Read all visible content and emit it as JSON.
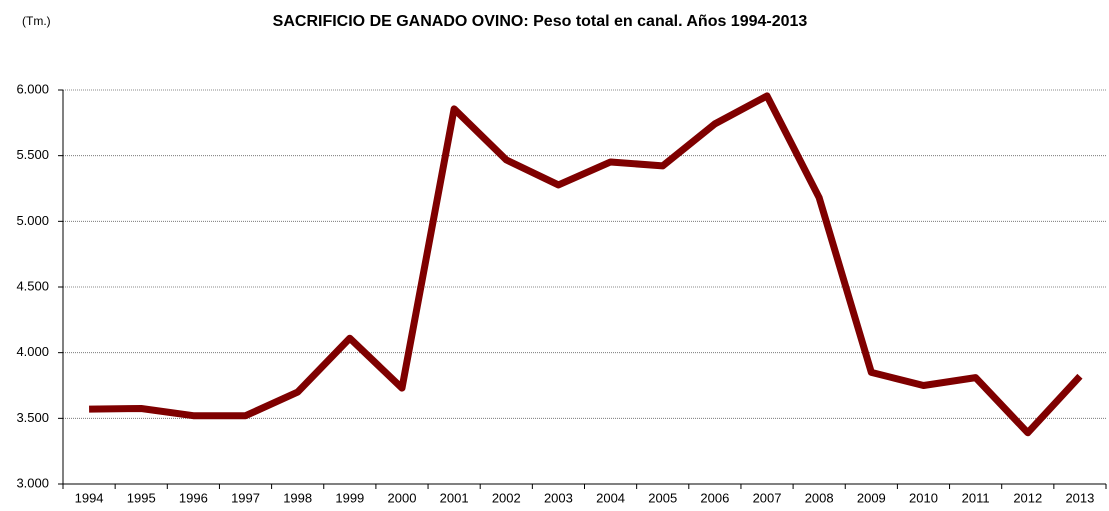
{
  "chart_data": {
    "type": "line",
    "unit": "(Tm.)",
    "title": "SACRIFICIO DE GANADO OVINO: Peso total en canal. Años 1994-2013",
    "categories": [
      "1994",
      "1995",
      "1996",
      "1997",
      "1998",
      "1999",
      "2000",
      "2001",
      "2002",
      "2003",
      "2004",
      "2005",
      "2006",
      "2007",
      "2008",
      "2009",
      "2010",
      "2011",
      "2012",
      "2013"
    ],
    "series": [
      {
        "name": "Peso total en canal",
        "color": "#7f0000",
        "values": [
          3570,
          3575,
          3520,
          3520,
          3700,
          4110,
          3730,
          5856,
          5468,
          5277,
          5452,
          5422,
          5742,
          5955,
          5180,
          3850,
          3750,
          3810,
          3390,
          3820
        ]
      }
    ],
    "ylim": [
      3000,
      6000
    ],
    "yticks": [
      {
        "value": 3000,
        "label": "3.000"
      },
      {
        "value": 3500,
        "label": "3.500"
      },
      {
        "value": 4000,
        "label": "4.000"
      },
      {
        "value": 4500,
        "label": "4.500"
      },
      {
        "value": 5000,
        "label": "5.000"
      },
      {
        "value": 5500,
        "label": "5.500"
      },
      {
        "value": 6000,
        "label": "6.000"
      }
    ],
    "grid": true
  }
}
